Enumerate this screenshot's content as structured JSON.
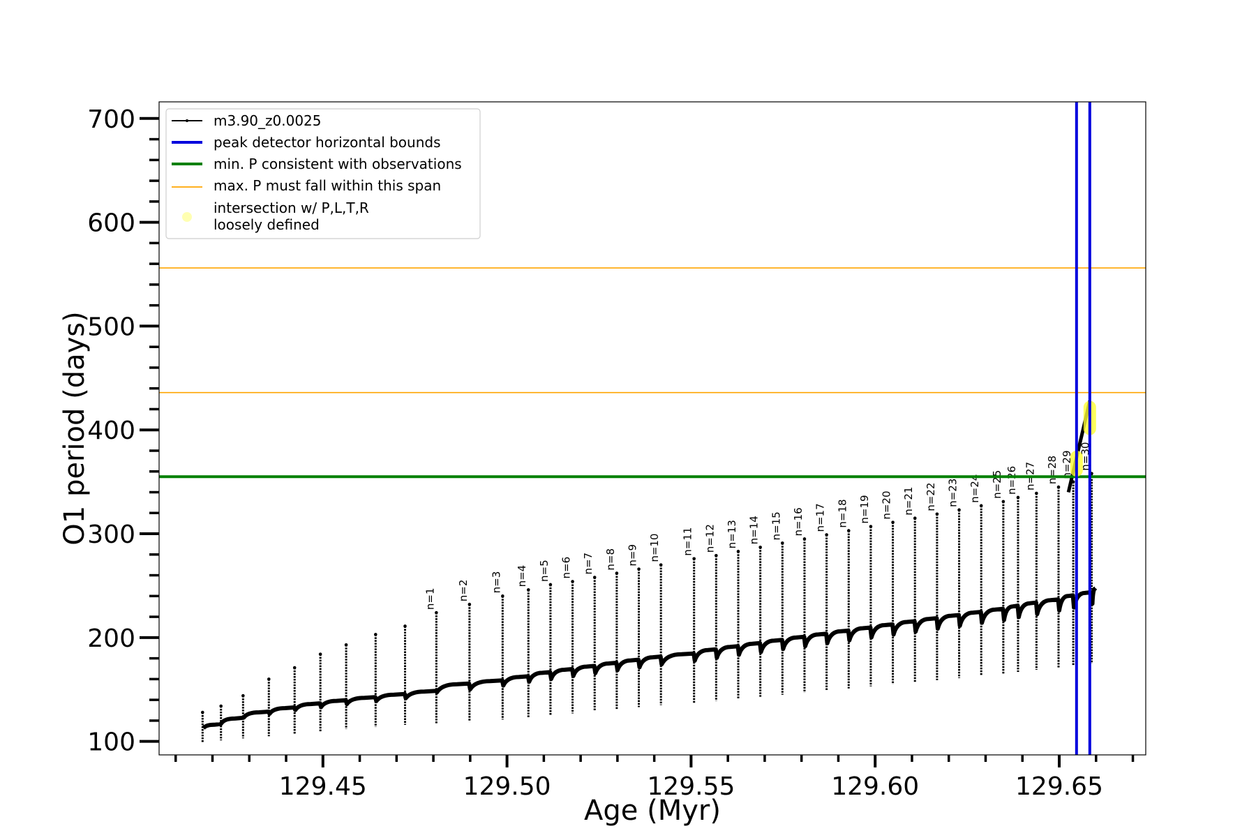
{
  "chart_data": {
    "type": "line",
    "title": "",
    "xlabel": "Age (Myr)",
    "ylabel": "O1 period (days)",
    "xlim": [
      129.4055,
      129.6735
    ],
    "ylim": [
      87,
      716
    ],
    "x_ticks": [
      {
        "value": 129.45,
        "label": "129.45"
      },
      {
        "value": 129.5,
        "label": "129.50"
      },
      {
        "value": 129.55,
        "label": "129.55"
      },
      {
        "value": 129.6,
        "label": "129.60"
      },
      {
        "value": 129.65,
        "label": "129.65"
      }
    ],
    "y_ticks": [
      {
        "value": 100,
        "label": "100"
      },
      {
        "value": 200,
        "label": "200"
      },
      {
        "value": 300,
        "label": "300"
      },
      {
        "value": 400,
        "label": "400"
      },
      {
        "value": 500,
        "label": "500"
      },
      {
        "value": 600,
        "label": "600"
      },
      {
        "value": 700,
        "label": "700"
      }
    ],
    "grid": false,
    "legend_position": "top-left",
    "legend": [
      {
        "label": "m3.90_z0.0025",
        "kind": "line-marker",
        "color": "#000000"
      },
      {
        "label": "peak detector horizontal bounds",
        "kind": "line",
        "color": "#0000dd"
      },
      {
        "label": "min. P consistent with observations",
        "kind": "line",
        "color": "#008000"
      },
      {
        "label": "max. P must fall within this span",
        "kind": "thin-line",
        "color": "#ffa500"
      },
      {
        "label": "intersection w/ P,L,T,R",
        "label2": "loosely defined",
        "kind": "dot",
        "color": "#ffff66"
      }
    ],
    "series": [
      {
        "name": "m3.90_z0.0025",
        "color": "#000000",
        "pulses": [
          {
            "n": "",
            "age": 129.4175,
            "base": 116,
            "peak": 128,
            "min": 99
          },
          {
            "n": "",
            "age": 129.4225,
            "base": 122,
            "peak": 134,
            "min": 101
          },
          {
            "n": "",
            "age": 129.4285,
            "base": 128,
            "peak": 144,
            "min": 103
          },
          {
            "n": "",
            "age": 129.4355,
            "base": 132,
            "peak": 160,
            "min": 105
          },
          {
            "n": "",
            "age": 129.4425,
            "base": 136,
            "peak": 171,
            "min": 107
          },
          {
            "n": "",
            "age": 129.4495,
            "base": 139,
            "peak": 184,
            "min": 109
          },
          {
            "n": "",
            "age": 129.4565,
            "base": 142,
            "peak": 193,
            "min": 112
          },
          {
            "n": "",
            "age": 129.4645,
            "base": 145,
            "peak": 203,
            "min": 114
          },
          {
            "n": "",
            "age": 129.4725,
            "base": 148,
            "peak": 211,
            "min": 116
          },
          {
            "n": "n=1",
            "age": 129.481,
            "base": 155,
            "peak": 224,
            "min": 117
          },
          {
            "n": "n=2",
            "age": 129.49,
            "base": 158,
            "peak": 232,
            "min": 119
          },
          {
            "n": "n=3",
            "age": 129.499,
            "base": 162,
            "peak": 240,
            "min": 121
          },
          {
            "n": "n=4",
            "age": 129.506,
            "base": 166,
            "peak": 246,
            "min": 123
          },
          {
            "n": "n=5",
            "age": 129.512,
            "base": 169,
            "peak": 251,
            "min": 125
          },
          {
            "n": "n=6",
            "age": 129.518,
            "base": 172,
            "peak": 254,
            "min": 127
          },
          {
            "n": "n=7",
            "age": 129.524,
            "base": 175,
            "peak": 258,
            "min": 129
          },
          {
            "n": "n=8",
            "age": 129.53,
            "base": 178,
            "peak": 262,
            "min": 131
          },
          {
            "n": "n=9",
            "age": 129.536,
            "base": 181,
            "peak": 266,
            "min": 133
          },
          {
            "n": "n=10",
            "age": 129.542,
            "base": 184,
            "peak": 270,
            "min": 135
          },
          {
            "n": "n=11",
            "age": 129.551,
            "base": 188,
            "peak": 276,
            "min": 137
          },
          {
            "n": "n=12",
            "age": 129.557,
            "base": 191,
            "peak": 279,
            "min": 139
          },
          {
            "n": "n=13",
            "age": 129.563,
            "base": 194,
            "peak": 283,
            "min": 141
          },
          {
            "n": "n=14",
            "age": 129.569,
            "base": 197,
            "peak": 287,
            "min": 143
          },
          {
            "n": "n=15",
            "age": 129.575,
            "base": 200,
            "peak": 291,
            "min": 145
          },
          {
            "n": "n=16",
            "age": 129.581,
            "base": 203,
            "peak": 295,
            "min": 147
          },
          {
            "n": "n=17",
            "age": 129.587,
            "base": 206,
            "peak": 299,
            "min": 149
          },
          {
            "n": "n=18",
            "age": 129.593,
            "base": 209,
            "peak": 303,
            "min": 151
          },
          {
            "n": "n=19",
            "age": 129.599,
            "base": 212,
            "peak": 307,
            "min": 153
          },
          {
            "n": "n=20",
            "age": 129.605,
            "base": 215,
            "peak": 311,
            "min": 155
          },
          {
            "n": "n=21",
            "age": 129.611,
            "base": 218,
            "peak": 315,
            "min": 157
          },
          {
            "n": "n=22",
            "age": 129.617,
            "base": 221,
            "peak": 319,
            "min": 159
          },
          {
            "n": "n=23",
            "age": 129.623,
            "base": 224,
            "peak": 323,
            "min": 161
          },
          {
            "n": "n=24",
            "age": 129.629,
            "base": 227,
            "peak": 327,
            "min": 163
          },
          {
            "n": "n=25",
            "age": 129.635,
            "base": 230,
            "peak": 331,
            "min": 165
          },
          {
            "n": "n=26",
            "age": 129.639,
            "base": 233,
            "peak": 335,
            "min": 167
          },
          {
            "n": "n=27",
            "age": 129.644,
            "base": 236,
            "peak": 339,
            "min": 169
          },
          {
            "n": "n=28",
            "age": 129.65,
            "base": 240,
            "peak": 345,
            "min": 171
          },
          {
            "n": "n=29",
            "age": 129.654,
            "base": 243,
            "peak": 350,
            "min": 173
          },
          {
            "n": "n=30",
            "age": 129.659,
            "base": 247,
            "peak": 358,
            "min": 175
          }
        ]
      }
    ],
    "peak_detector_bounds": [
      129.6547,
      129.6583
    ],
    "min_period": 355,
    "max_period_span": [
      436,
      556
    ],
    "intersections": [
      {
        "age": 129.6547,
        "period_low": 355,
        "period_high": 380
      },
      {
        "age": 129.6583,
        "period_low": 395,
        "period_high": 428
      }
    ]
  }
}
